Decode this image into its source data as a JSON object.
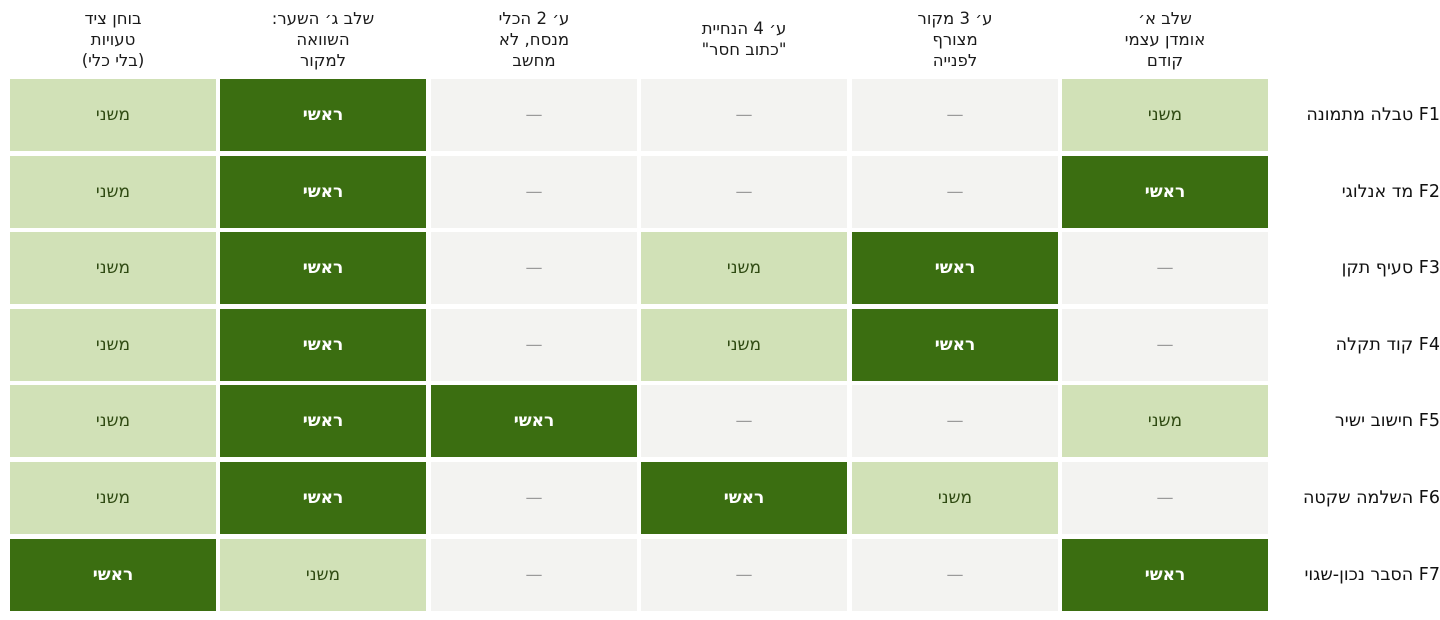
{
  "columns": [
    "שלב א׳\nאומדן עצמי\nקודם",
    "ע׳ 3 מקור\nמצורף\nלפנייה",
    "ע׳ 4 הנחיית\n\"כתוב חסר\"",
    "ע׳ 2 הכלי\nמנסח, לא\nמחשב",
    "שלב ג׳ השער:\nהשוואה\nלמקור",
    "בוחן ציד\nטעויות\n(בלי כלי)"
  ],
  "rows": [
    {
      "label": "F1 טבלה מתמונה",
      "cells": [
        "secondary",
        "none",
        "none",
        "none",
        "primary",
        "secondary"
      ]
    },
    {
      "label": "F2 מד אנלוגי",
      "cells": [
        "primary",
        "none",
        "none",
        "none",
        "primary",
        "secondary"
      ]
    },
    {
      "label": "F3 סעיף תקן",
      "cells": [
        "none",
        "primary",
        "secondary",
        "none",
        "primary",
        "secondary"
      ]
    },
    {
      "label": "F4 קוד תקלה",
      "cells": [
        "none",
        "primary",
        "secondary",
        "none",
        "primary",
        "secondary"
      ]
    },
    {
      "label": "F5 חישוב ישיר",
      "cells": [
        "secondary",
        "none",
        "none",
        "primary",
        "primary",
        "secondary"
      ]
    },
    {
      "label": "F6 השלמה שקטה",
      "cells": [
        "none",
        "secondary",
        "primary",
        "none",
        "primary",
        "secondary"
      ]
    },
    {
      "label": "F7 הסבר נכון-שגוי",
      "cells": [
        "primary",
        "none",
        "none",
        "none",
        "secondary",
        "primary"
      ]
    }
  ],
  "levels": {
    "primary": "ראשי",
    "secondary": "משני",
    "none": "—"
  },
  "colors": {
    "primary": "#3b6e11",
    "secondary": "#d1e1b7",
    "none": "#f3f3f1"
  }
}
